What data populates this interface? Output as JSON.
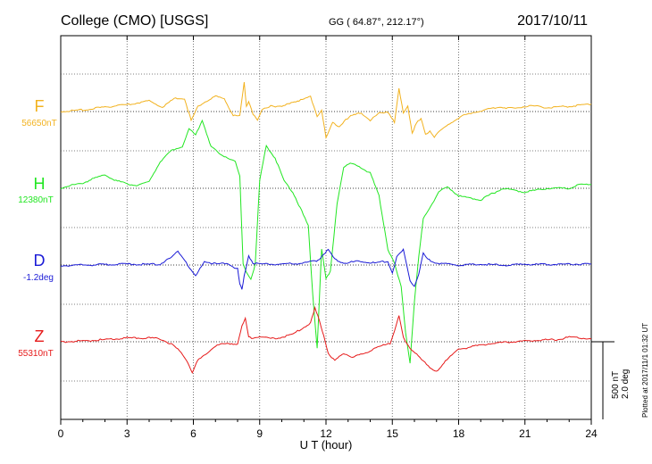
{
  "header": {
    "title": "College (CMO)  [USGS]",
    "coords": "GG ( 64.87°, 212.17°)",
    "date": "2017/10/11"
  },
  "side_note": "Plotted at 2017/11/1 01:32 UT",
  "colors": {
    "F": "#f2b21f",
    "H": "#22e622",
    "D": "#1a1ad6",
    "Z": "#e61a1a",
    "frame": "#000000"
  },
  "chart_data": {
    "type": "line",
    "title": "",
    "xlabel": "U T (hour)",
    "xlim": [
      0,
      24
    ],
    "x_ticks": [
      "0",
      "3",
      "6",
      "9",
      "12",
      "15",
      "18",
      "21",
      "24"
    ],
    "grid": true,
    "scale_bar": {
      "value_nT": 500,
      "value_deg": 2.0,
      "label_nT": "500 nT",
      "label_deg": "2.0 deg"
    },
    "series": [
      {
        "name": "F",
        "baseline_label": "56650nT",
        "unit": "nT",
        "x": [
          0,
          1,
          2,
          3,
          4,
          4.6,
          5.2,
          5.6,
          5.9,
          6.2,
          6.6,
          7.0,
          7.4,
          7.8,
          8.1,
          8.3,
          8.4,
          8.5,
          8.7,
          8.9,
          9.1,
          9.5,
          10,
          10.5,
          11,
          11.3,
          11.6,
          11.8,
          12.0,
          12.3,
          12.6,
          12.9,
          13.2,
          13.6,
          14,
          14.4,
          14.8,
          15.1,
          15.3,
          15.5,
          15.7,
          15.9,
          16.1,
          16.3,
          16.5,
          16.7,
          16.9,
          17.1,
          17.4,
          17.8,
          18.2,
          18.7,
          19.2,
          19.8,
          20.5,
          21.2,
          22,
          23,
          24
        ],
        "values": [
          0,
          20,
          60,
          90,
          140,
          60,
          180,
          170,
          -120,
          60,
          140,
          200,
          170,
          -50,
          -60,
          380,
          70,
          140,
          -30,
          -120,
          20,
          80,
          60,
          130,
          160,
          200,
          -60,
          20,
          -350,
          -150,
          -200,
          -100,
          -50,
          -20,
          -120,
          -20,
          0,
          -150,
          300,
          -20,
          80,
          -280,
          -150,
          -100,
          -300,
          -250,
          -330,
          -270,
          -200,
          -120,
          -50,
          -10,
          20,
          60,
          40,
          80,
          50,
          70,
          100
        ]
      },
      {
        "name": "H",
        "baseline_label": "12380nT",
        "unit": "nT",
        "x": [
          0,
          0.5,
          1,
          1.5,
          2,
          2.5,
          3,
          3.5,
          4,
          4.5,
          5,
          5.5,
          5.8,
          6.1,
          6.4,
          6.8,
          7.2,
          7.6,
          7.9,
          8.1,
          8.25,
          8.4,
          8.6,
          8.8,
          9.0,
          9.3,
          9.7,
          10.1,
          10.5,
          10.9,
          11.2,
          11.4,
          11.6,
          11.8,
          12.0,
          12.2,
          12.5,
          12.8,
          13.1,
          13.5,
          14.0,
          14.4,
          14.8,
          15.1,
          15.4,
          15.6,
          15.8,
          16.0,
          16.2,
          16.4,
          16.6,
          16.8,
          17.1,
          17.5,
          18,
          19,
          20,
          21,
          22,
          23,
          23.5,
          24
        ],
        "values": [
          0,
          40,
          70,
          130,
          180,
          100,
          60,
          40,
          90,
          350,
          500,
          550,
          780,
          700,
          900,
          550,
          450,
          400,
          350,
          150,
          -1000,
          -1100,
          -1200,
          -1000,
          100,
          560,
          400,
          100,
          -50,
          -300,
          -500,
          -1400,
          -2100,
          -800,
          -1200,
          -1100,
          -200,
          280,
          330,
          290,
          200,
          -100,
          -800,
          -1000,
          -1300,
          -1900,
          -2300,
          -1500,
          -900,
          -400,
          -300,
          -200,
          -50,
          20,
          -100,
          -150,
          0,
          -50,
          0,
          0,
          50,
          50
        ]
      },
      {
        "name": "D",
        "baseline_label": "-1.2deg",
        "unit": "deg",
        "x": [
          0,
          1,
          2,
          3,
          4,
          4.5,
          5,
          5.3,
          5.6,
          5.9,
          6.1,
          6.5,
          7,
          7.5,
          8.0,
          8.1,
          8.2,
          8.3,
          8.5,
          8.7,
          9,
          10,
          11,
          11.5,
          11.7,
          11.9,
          12.1,
          12.4,
          12.8,
          13.5,
          14.2,
          14.8,
          15.0,
          15.2,
          15.5,
          15.8,
          16.0,
          16.2,
          16.4,
          16.6,
          17,
          17.5,
          18,
          19,
          20,
          21,
          22,
          23,
          24
        ],
        "values": [
          -0.04,
          0,
          0.02,
          0.05,
          0.03,
          0.05,
          0.4,
          0.7,
          0.3,
          -0.3,
          -0.6,
          0.2,
          0.05,
          0.1,
          -0.2,
          -1.0,
          -1.3,
          -0.6,
          0.5,
          0.1,
          0.05,
          0.05,
          0.1,
          0.2,
          0.3,
          0.6,
          0.8,
          0.3,
          0.1,
          0.2,
          0.1,
          0.2,
          -0.4,
          0.4,
          0.8,
          -0.8,
          -1.1,
          -0.5,
          0.6,
          0.3,
          0.1,
          0.05,
          0,
          0.05,
          -0.02,
          0.05,
          0.03,
          0.05,
          0.05
        ]
      },
      {
        "name": "Z",
        "baseline_label": "55310nT",
        "unit": "nT",
        "x": [
          0,
          1,
          2,
          3,
          4,
          4.5,
          5,
          5.3,
          5.6,
          5.8,
          5.95,
          6.2,
          6.6,
          7,
          7.6,
          8.0,
          8.2,
          8.35,
          8.5,
          8.7,
          9,
          9.5,
          10,
          10.5,
          11,
          11.3,
          11.5,
          11.7,
          11.9,
          12.1,
          12.4,
          12.8,
          13.2,
          13.8,
          14.2,
          14.6,
          14.9,
          15.1,
          15.3,
          15.5,
          15.8,
          16.1,
          16.4,
          16.7,
          17.0,
          17.4,
          18,
          18.7,
          19.5,
          20.5,
          21.5,
          22.5,
          23,
          24
        ],
        "values": [
          0,
          10,
          30,
          50,
          50,
          40,
          -30,
          -100,
          -200,
          -300,
          -400,
          -250,
          -150,
          -50,
          -20,
          -30,
          200,
          300,
          60,
          50,
          70,
          40,
          60,
          100,
          190,
          250,
          440,
          280,
          80,
          -150,
          -250,
          -150,
          -200,
          -150,
          -80,
          -50,
          -20,
          150,
          350,
          50,
          -100,
          -150,
          -250,
          -350,
          -400,
          -250,
          -100,
          -60,
          -20,
          0,
          20,
          30,
          60,
          40
        ]
      }
    ]
  }
}
